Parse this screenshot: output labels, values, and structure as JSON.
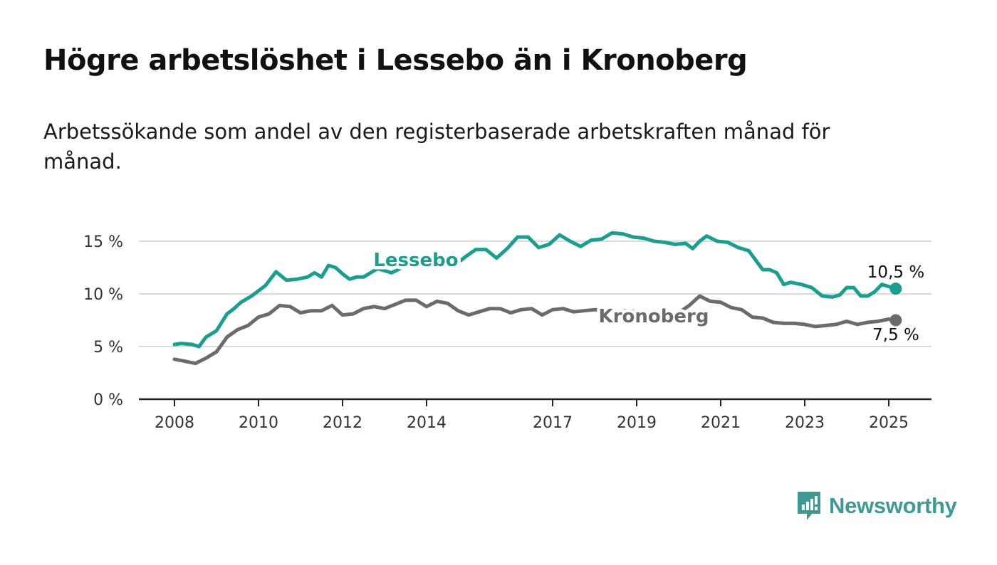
{
  "title": "Högre arbetslöshet i Lessebo än i Kronoberg",
  "subtitle": "Arbetssökande som andel av den registerbaserade arbetskraften månad för månad.",
  "brand": {
    "name": "Newsworthy",
    "color": "#3f9a95"
  },
  "chart_data": {
    "type": "line",
    "title": "Högre arbetslöshet i Lessebo än i Kronoberg",
    "subtitle": "Arbetssökande som andel av den registerbaserade arbetskraften månad för månad.",
    "xlabel": "",
    "ylabel": "",
    "ylim": [
      0,
      15
    ],
    "xlim": [
      "2008-01",
      "2025-03"
    ],
    "yticks": [
      0,
      5,
      10,
      15
    ],
    "ytick_labels": [
      "0 %",
      "5 %",
      "10 %",
      "15 %"
    ],
    "xticks": [
      2008,
      2010,
      2012,
      2014,
      2017,
      2019,
      2021,
      2023,
      2025
    ],
    "xtick_labels": [
      "2008",
      "2010",
      "2012",
      "2014",
      "2017",
      "2019",
      "2021",
      "2023",
      "2025"
    ],
    "grid": "horizontal",
    "legend": "inline-labels",
    "series": [
      {
        "name": "Lessebo",
        "color": "#1a9e8f",
        "end_label": "10,5 %",
        "points": [
          [
            "2008-01",
            5.2
          ],
          [
            "2008-03",
            5.3
          ],
          [
            "2008-06",
            5.2
          ],
          [
            "2008-08",
            5.0
          ],
          [
            "2008-10",
            5.9
          ],
          [
            "2009-01",
            6.5
          ],
          [
            "2009-04",
            8.1
          ],
          [
            "2009-06",
            8.6
          ],
          [
            "2009-08",
            9.2
          ],
          [
            "2009-11",
            9.8
          ],
          [
            "2010-01",
            10.3
          ],
          [
            "2010-03",
            10.8
          ],
          [
            "2010-06",
            12.1
          ],
          [
            "2010-09",
            11.3
          ],
          [
            "2010-12",
            11.4
          ],
          [
            "2011-03",
            11.6
          ],
          [
            "2011-05",
            12.0
          ],
          [
            "2011-07",
            11.6
          ],
          [
            "2011-09",
            12.7
          ],
          [
            "2011-11",
            12.5
          ],
          [
            "2012-01",
            11.9
          ],
          [
            "2012-03",
            11.4
          ],
          [
            "2012-05",
            11.6
          ],
          [
            "2012-07",
            11.6
          ],
          [
            "2012-09",
            12.0
          ],
          [
            "2012-11",
            12.4
          ],
          [
            "2013-01",
            12.2
          ],
          [
            "2013-03",
            12.0
          ],
          [
            "2013-06",
            12.5
          ],
          [
            "2013-09",
            13.0
          ],
          [
            "2013-12",
            13.4
          ],
          [
            "2014-03",
            13.3
          ],
          [
            "2014-06",
            13.0
          ],
          [
            "2014-09",
            12.7
          ],
          [
            "2014-12",
            13.5
          ],
          [
            "2015-03",
            14.2
          ],
          [
            "2015-06",
            14.2
          ],
          [
            "2015-09",
            13.4
          ],
          [
            "2015-12",
            14.3
          ],
          [
            "2016-03",
            15.4
          ],
          [
            "2016-06",
            15.4
          ],
          [
            "2016-09",
            14.4
          ],
          [
            "2016-12",
            14.7
          ],
          [
            "2017-03",
            15.6
          ],
          [
            "2017-06",
            15.0
          ],
          [
            "2017-09",
            14.5
          ],
          [
            "2017-12",
            15.1
          ],
          [
            "2018-03",
            15.2
          ],
          [
            "2018-06",
            15.8
          ],
          [
            "2018-09",
            15.7
          ],
          [
            "2018-12",
            15.4
          ],
          [
            "2019-03",
            15.3
          ],
          [
            "2019-06",
            15.0
          ],
          [
            "2019-09",
            14.9
          ],
          [
            "2019-12",
            14.7
          ],
          [
            "2020-03",
            14.8
          ],
          [
            "2020-05",
            14.3
          ],
          [
            "2020-07",
            15.0
          ],
          [
            "2020-09",
            15.5
          ],
          [
            "2020-12",
            15.0
          ],
          [
            "2021-03",
            14.9
          ],
          [
            "2021-06",
            14.4
          ],
          [
            "2021-09",
            14.1
          ],
          [
            "2021-11",
            13.2
          ],
          [
            "2022-01",
            12.3
          ],
          [
            "2022-03",
            12.3
          ],
          [
            "2022-05",
            12.0
          ],
          [
            "2022-07",
            10.9
          ],
          [
            "2022-09",
            11.1
          ],
          [
            "2022-12",
            10.9
          ],
          [
            "2023-03",
            10.6
          ],
          [
            "2023-06",
            9.8
          ],
          [
            "2023-09",
            9.7
          ],
          [
            "2023-11",
            9.9
          ],
          [
            "2024-01",
            10.6
          ],
          [
            "2024-03",
            10.6
          ],
          [
            "2024-05",
            9.8
          ],
          [
            "2024-07",
            9.8
          ],
          [
            "2024-09",
            10.2
          ],
          [
            "2024-11",
            10.9
          ],
          [
            "2025-01",
            10.7
          ],
          [
            "2025-03",
            10.5
          ]
        ]
      },
      {
        "name": "Kronoberg",
        "color": "#6b6b6e",
        "end_label": "7,5 %",
        "points": [
          [
            "2008-01",
            3.8
          ],
          [
            "2008-04",
            3.6
          ],
          [
            "2008-07",
            3.4
          ],
          [
            "2008-10",
            3.9
          ],
          [
            "2009-01",
            4.5
          ],
          [
            "2009-04",
            5.9
          ],
          [
            "2009-07",
            6.6
          ],
          [
            "2009-10",
            7.0
          ],
          [
            "2010-01",
            7.8
          ],
          [
            "2010-04",
            8.1
          ],
          [
            "2010-07",
            8.9
          ],
          [
            "2010-10",
            8.8
          ],
          [
            "2011-01",
            8.2
          ],
          [
            "2011-04",
            8.4
          ],
          [
            "2011-07",
            8.4
          ],
          [
            "2011-10",
            8.9
          ],
          [
            "2012-01",
            8.0
          ],
          [
            "2012-04",
            8.1
          ],
          [
            "2012-07",
            8.6
          ],
          [
            "2012-10",
            8.8
          ],
          [
            "2013-01",
            8.6
          ],
          [
            "2013-04",
            9.0
          ],
          [
            "2013-07",
            9.4
          ],
          [
            "2013-10",
            9.4
          ],
          [
            "2014-01",
            8.8
          ],
          [
            "2014-04",
            9.3
          ],
          [
            "2014-07",
            9.1
          ],
          [
            "2014-10",
            8.4
          ],
          [
            "2015-01",
            8.0
          ],
          [
            "2015-04",
            8.3
          ],
          [
            "2015-07",
            8.6
          ],
          [
            "2015-10",
            8.6
          ],
          [
            "2016-01",
            8.2
          ],
          [
            "2016-04",
            8.5
          ],
          [
            "2016-07",
            8.6
          ],
          [
            "2016-10",
            8.0
          ],
          [
            "2017-01",
            8.5
          ],
          [
            "2017-04",
            8.6
          ],
          [
            "2017-07",
            8.3
          ],
          [
            "2017-10",
            8.4
          ],
          [
            "2018-01",
            8.5
          ],
          [
            "2018-04",
            8.5
          ],
          [
            "2018-07",
            8.3
          ],
          [
            "2018-10",
            8.4
          ],
          [
            "2019-01",
            8.3
          ],
          [
            "2019-04",
            8.2
          ],
          [
            "2019-07",
            8.3
          ],
          [
            "2019-10",
            8.2
          ],
          [
            "2020-01",
            8.2
          ],
          [
            "2020-04",
            8.9
          ],
          [
            "2020-07",
            9.8
          ],
          [
            "2020-10",
            9.3
          ],
          [
            "2021-01",
            9.2
          ],
          [
            "2021-04",
            8.7
          ],
          [
            "2021-07",
            8.5
          ],
          [
            "2021-10",
            7.8
          ],
          [
            "2022-01",
            7.7
          ],
          [
            "2022-04",
            7.3
          ],
          [
            "2022-07",
            7.2
          ],
          [
            "2022-10",
            7.2
          ],
          [
            "2023-01",
            7.1
          ],
          [
            "2023-04",
            6.9
          ],
          [
            "2023-07",
            7.0
          ],
          [
            "2023-10",
            7.1
          ],
          [
            "2024-01",
            7.4
          ],
          [
            "2024-04",
            7.1
          ],
          [
            "2024-07",
            7.3
          ],
          [
            "2024-10",
            7.4
          ],
          [
            "2025-01",
            7.6
          ],
          [
            "2025-03",
            7.5
          ]
        ]
      }
    ]
  }
}
